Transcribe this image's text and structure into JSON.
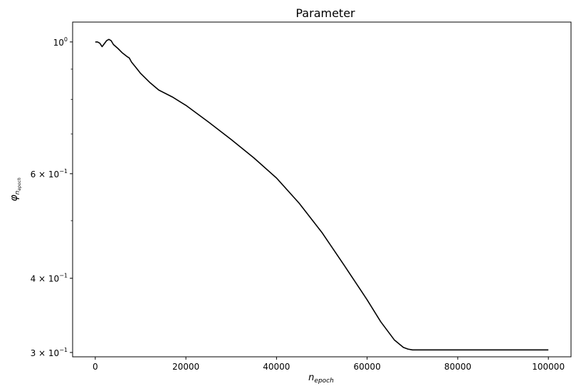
{
  "chart_data": {
    "type": "line",
    "title": "Parameter",
    "xlabel": "n",
    "xlabel_sub": "epoch",
    "ylabel": "φ",
    "ylabel_sub": "n",
    "ylabel_subsub": "epoch",
    "yscale": "log",
    "xlim": [
      -5000,
      105000
    ],
    "ylim": [
      0.295,
      1.08
    ],
    "grid": false,
    "legend": "none",
    "line_color": "#000000",
    "x_ticks": [
      {
        "value": 0,
        "label": "0"
      },
      {
        "value": 20000,
        "label": "20000"
      },
      {
        "value": 40000,
        "label": "40000"
      },
      {
        "value": 60000,
        "label": "60000"
      },
      {
        "value": 80000,
        "label": "80000"
      },
      {
        "value": 100000,
        "label": "100000"
      }
    ],
    "y_major_ticks": [
      {
        "value": 1.0,
        "base": "10",
        "exp": "0",
        "mantissa": ""
      },
      {
        "value": 0.6,
        "base": "10",
        "exp": "−1",
        "mantissa": "6 × "
      },
      {
        "value": 0.4,
        "base": "10",
        "exp": "−1",
        "mantissa": "4 × "
      },
      {
        "value": 0.3,
        "base": "10",
        "exp": "−1",
        "mantissa": "3 × "
      }
    ],
    "y_minor_ticks": [
      0.5,
      0.7,
      0.8,
      0.9
    ],
    "series": [
      {
        "x": [
          0,
          500,
          1000,
          1500,
          2000,
          2500,
          3000,
          3500,
          4000,
          5000,
          6000,
          7000,
          7500,
          8000,
          9000,
          10000,
          12000,
          14000,
          17000,
          20000,
          25000,
          30000,
          35000,
          40000,
          45000,
          50000,
          55000,
          60000,
          63000,
          66000,
          68000,
          69000,
          70000,
          75000,
          80000,
          90000,
          100000
        ],
        "y": [
          1.0,
          1.0,
          0.995,
          0.982,
          0.993,
          1.005,
          1.01,
          1.005,
          0.99,
          0.975,
          0.958,
          0.945,
          0.94,
          0.925,
          0.905,
          0.885,
          0.855,
          0.83,
          0.808,
          0.782,
          0.733,
          0.685,
          0.638,
          0.59,
          0.535,
          0.478,
          0.42,
          0.368,
          0.338,
          0.315,
          0.306,
          0.304,
          0.303,
          0.303,
          0.303,
          0.303,
          0.303
        ]
      }
    ]
  }
}
